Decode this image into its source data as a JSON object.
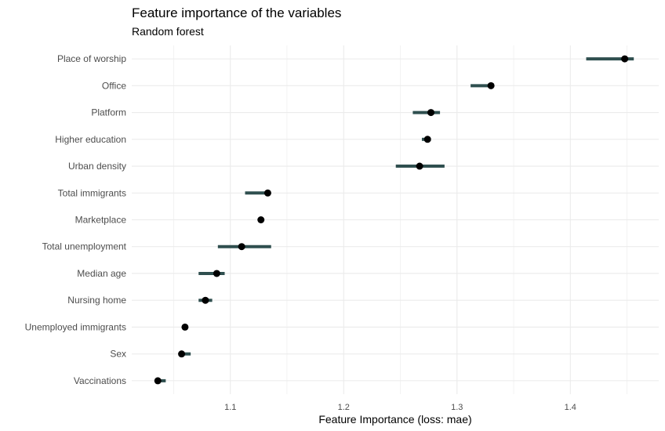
{
  "chart_data": {
    "type": "scatter",
    "title": "Feature importance of the variables",
    "subtitle": "Random forest",
    "xlabel": "Feature Importance (loss: mae)",
    "ylabel": "",
    "xlim": [
      1.013,
      1.478
    ],
    "xticks": [
      1.1,
      1.2,
      1.3,
      1.4
    ],
    "xtick_labels": [
      "1.1",
      "1.2",
      "1.3",
      "1.4"
    ],
    "grid": true,
    "colors": {
      "point": "#000000",
      "interval": "#2f4f4f",
      "grid": "#ebebeb"
    },
    "features": [
      {
        "label": "Place of worship",
        "value": 1.448,
        "low": 1.414,
        "high": 1.456
      },
      {
        "label": "Office",
        "value": 1.33,
        "low": 1.312,
        "high": 1.332
      },
      {
        "label": "Platform",
        "value": 1.277,
        "low": 1.261,
        "high": 1.285
      },
      {
        "label": "Higher education",
        "value": 1.274,
        "low": 1.269,
        "high": 1.277
      },
      {
        "label": "Urban density",
        "value": 1.267,
        "low": 1.246,
        "high": 1.289
      },
      {
        "label": "Total immigrants",
        "value": 1.133,
        "low": 1.113,
        "high": 1.135
      },
      {
        "label": "Marketplace",
        "value": 1.127,
        "low": 1.126,
        "high": 1.128
      },
      {
        "label": "Total unemployment",
        "value": 1.11,
        "low": 1.089,
        "high": 1.136
      },
      {
        "label": "Median age",
        "value": 1.088,
        "low": 1.072,
        "high": 1.095
      },
      {
        "label": "Nursing home",
        "value": 1.078,
        "low": 1.072,
        "high": 1.084
      },
      {
        "label": "Unemployed immigrants",
        "value": 1.06,
        "low": 1.059,
        "high": 1.061
      },
      {
        "label": "Sex",
        "value": 1.057,
        "low": 1.055,
        "high": 1.065
      },
      {
        "label": "Vaccinations",
        "value": 1.036,
        "low": 1.035,
        "high": 1.043
      }
    ]
  }
}
